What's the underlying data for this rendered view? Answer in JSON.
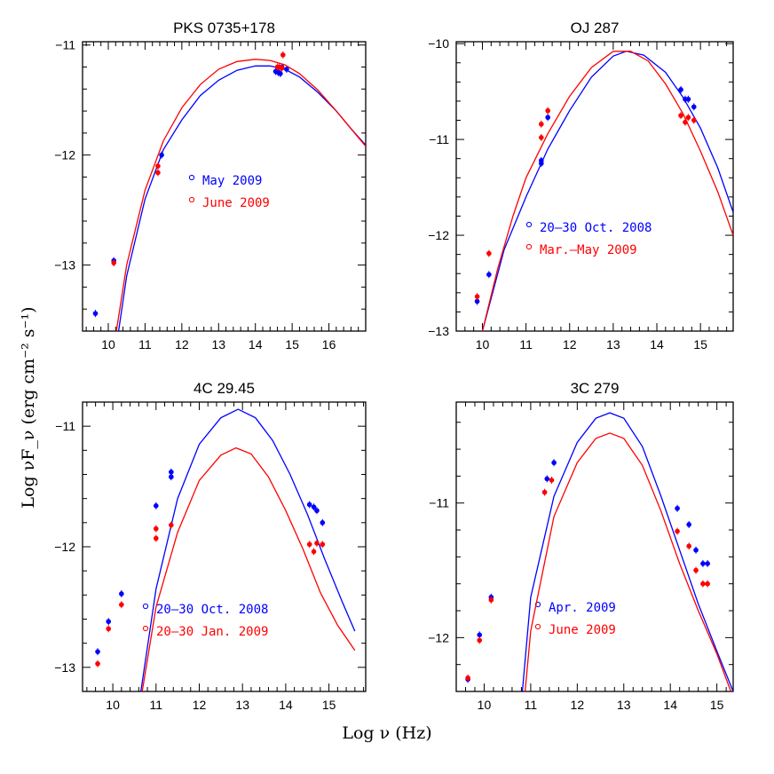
{
  "figure": {
    "ylabel": "Log νF_ν (erg cm⁻² s⁻¹)",
    "xlabel": "Log ν (Hz)"
  },
  "colors": {
    "series1": "#0000ff",
    "series2": "#ff0000",
    "axes": "#000000"
  },
  "chart_data": [
    {
      "type": "scatter",
      "title": "PKS 0735+178",
      "xlim": [
        9.3,
        17.0
      ],
      "ylim": [
        -13.6,
        -10.97
      ],
      "xticks": [
        10,
        11,
        12,
        13,
        14,
        15,
        16
      ],
      "yticks": [
        -11,
        -12,
        -13
      ],
      "legend_position": "center",
      "series": [
        {
          "name": "May 2009",
          "color": "#0000ff",
          "points": [
            [
              9.65,
              -13.44
            ],
            [
              10.15,
              -12.96
            ],
            [
              11.45,
              -12.0
            ],
            [
              14.55,
              -11.24
            ],
            [
              14.62,
              -11.25
            ],
            [
              14.68,
              -11.26
            ],
            [
              14.72,
              -11.2
            ],
            [
              14.85,
              -11.22
            ]
          ],
          "model": [
            [
              10.28,
              -13.6
            ],
            [
              10.5,
              -13.1
            ],
            [
              11.0,
              -12.4
            ],
            [
              11.5,
              -11.95
            ],
            [
              12.0,
              -11.68
            ],
            [
              12.5,
              -11.46
            ],
            [
              13.0,
              -11.32
            ],
            [
              13.5,
              -11.23
            ],
            [
              14.0,
              -11.19
            ],
            [
              14.4,
              -11.19
            ],
            [
              14.8,
              -11.22
            ],
            [
              15.2,
              -11.29
            ],
            [
              15.7,
              -11.43
            ],
            [
              16.2,
              -11.6
            ],
            [
              16.6,
              -11.76
            ],
            [
              17.0,
              -11.91
            ]
          ]
        },
        {
          "name": "June 2009",
          "color": "#ff0000",
          "points": [
            [
              10.15,
              -12.98
            ],
            [
              11.35,
              -12.1
            ],
            [
              11.35,
              -12.16
            ],
            [
              14.6,
              -11.2
            ],
            [
              14.65,
              -11.2
            ],
            [
              14.72,
              -11.21
            ],
            [
              14.75,
              -11.09
            ]
          ],
          "model": [
            [
              10.22,
              -13.6
            ],
            [
              10.5,
              -13.0
            ],
            [
              11.0,
              -12.32
            ],
            [
              11.5,
              -11.87
            ],
            [
              12.0,
              -11.57
            ],
            [
              12.5,
              -11.36
            ],
            [
              13.0,
              -11.22
            ],
            [
              13.5,
              -11.15
            ],
            [
              14.0,
              -11.13
            ],
            [
              14.4,
              -11.14
            ],
            [
              14.8,
              -11.18
            ],
            [
              15.2,
              -11.26
            ],
            [
              15.7,
              -11.41
            ],
            [
              16.2,
              -11.6
            ],
            [
              16.6,
              -11.76
            ],
            [
              17.0,
              -11.92
            ]
          ]
        }
      ]
    },
    {
      "type": "scatter",
      "title": "OJ 287",
      "xlim": [
        9.4,
        15.75
      ],
      "ylim": [
        -13.0,
        -9.98
      ],
      "xticks": [
        10,
        11,
        12,
        13,
        14,
        15
      ],
      "yticks": [
        -10,
        -11,
        -12,
        -13
      ],
      "legend_position": "bottom-right",
      "series": [
        {
          "name": "20–30 Oct. 2008",
          "color": "#0000ff",
          "points": [
            [
              9.88,
              -12.69
            ],
            [
              10.15,
              -12.41
            ],
            [
              11.35,
              -11.22
            ],
            [
              11.35,
              -11.25
            ],
            [
              11.5,
              -10.77
            ],
            [
              14.55,
              -10.48
            ],
            [
              14.65,
              -10.58
            ],
            [
              14.72,
              -10.58
            ],
            [
              14.85,
              -10.66
            ]
          ],
          "model": [
            [
              10.0,
              -13.0
            ],
            [
              10.5,
              -12.15
            ],
            [
              11.0,
              -11.6
            ],
            [
              11.5,
              -11.1
            ],
            [
              12.0,
              -10.7
            ],
            [
              12.5,
              -10.35
            ],
            [
              13.0,
              -10.13
            ],
            [
              13.3,
              -10.08
            ],
            [
              13.7,
              -10.12
            ],
            [
              14.2,
              -10.3
            ],
            [
              14.6,
              -10.56
            ],
            [
              15.0,
              -10.88
            ],
            [
              15.4,
              -11.3
            ],
            [
              15.75,
              -11.76
            ]
          ]
        },
        {
          "name": "Mar.–May 2009",
          "color": "#ff0000",
          "points": [
            [
              9.88,
              -12.64
            ],
            [
              10.15,
              -12.19
            ],
            [
              11.35,
              -10.98
            ],
            [
              11.35,
              -10.84
            ],
            [
              11.5,
              -10.7
            ],
            [
              14.55,
              -10.75
            ],
            [
              14.65,
              -10.82
            ],
            [
              14.72,
              -10.77
            ],
            [
              14.85,
              -10.8
            ]
          ],
          "model": [
            [
              10.0,
              -13.0
            ],
            [
              10.35,
              -12.35
            ],
            [
              10.7,
              -11.8
            ],
            [
              11.0,
              -11.4
            ],
            [
              11.5,
              -10.94
            ],
            [
              12.0,
              -10.55
            ],
            [
              12.5,
              -10.25
            ],
            [
              13.0,
              -10.08
            ],
            [
              13.4,
              -10.08
            ],
            [
              13.8,
              -10.18
            ],
            [
              14.2,
              -10.42
            ],
            [
              14.6,
              -10.73
            ],
            [
              15.0,
              -11.12
            ],
            [
              15.4,
              -11.55
            ],
            [
              15.75,
              -12.0
            ]
          ]
        }
      ]
    },
    {
      "type": "scatter",
      "title": "4C 29.45",
      "xlim": [
        9.3,
        15.85
      ],
      "ylim": [
        -13.2,
        -10.8
      ],
      "xticks": [
        10,
        11,
        12,
        13,
        14,
        15
      ],
      "yticks": [
        -11,
        -12,
        -13
      ],
      "legend_position": "bottom-right",
      "series": [
        {
          "name": "20–30 Oct. 2008",
          "color": "#0000ff",
          "points": [
            [
              9.65,
              -12.87
            ],
            [
              9.9,
              -12.62
            ],
            [
              10.2,
              -12.39
            ],
            [
              11.0,
              -11.66
            ],
            [
              11.35,
              -11.42
            ],
            [
              11.35,
              -11.38
            ],
            [
              14.55,
              -11.65
            ],
            [
              14.65,
              -11.67
            ],
            [
              14.72,
              -11.7
            ],
            [
              14.85,
              -11.8
            ]
          ],
          "model": [
            [
              10.65,
              -13.2
            ],
            [
              11.0,
              -12.35
            ],
            [
              11.5,
              -11.6
            ],
            [
              12.0,
              -11.15
            ],
            [
              12.5,
              -10.93
            ],
            [
              12.9,
              -10.86
            ],
            [
              13.3,
              -10.93
            ],
            [
              13.7,
              -11.12
            ],
            [
              14.1,
              -11.4
            ],
            [
              14.5,
              -11.73
            ],
            [
              14.9,
              -12.1
            ],
            [
              15.3,
              -12.45
            ],
            [
              15.6,
              -12.7
            ]
          ]
        },
        {
          "name": "20–30 Jan. 2009",
          "color": "#ff0000",
          "points": [
            [
              9.65,
              -12.97
            ],
            [
              9.9,
              -12.68
            ],
            [
              10.2,
              -12.48
            ],
            [
              11.0,
              -11.85
            ],
            [
              11.0,
              -11.93
            ],
            [
              11.35,
              -11.82
            ],
            [
              14.55,
              -11.98
            ],
            [
              14.65,
              -12.04
            ],
            [
              14.72,
              -11.97
            ],
            [
              14.85,
              -11.98
            ]
          ],
          "model": [
            [
              10.68,
              -13.2
            ],
            [
              11.0,
              -12.5
            ],
            [
              11.5,
              -11.88
            ],
            [
              12.0,
              -11.45
            ],
            [
              12.5,
              -11.24
            ],
            [
              12.85,
              -11.18
            ],
            [
              13.2,
              -11.23
            ],
            [
              13.6,
              -11.42
            ],
            [
              14.0,
              -11.7
            ],
            [
              14.4,
              -12.02
            ],
            [
              14.8,
              -12.38
            ],
            [
              15.2,
              -12.65
            ],
            [
              15.6,
              -12.86
            ]
          ]
        }
      ]
    },
    {
      "type": "scatter",
      "title": "3C 279",
      "xlim": [
        9.4,
        15.35
      ],
      "ylim": [
        -12.4,
        -10.25
      ],
      "xticks": [
        10,
        11,
        12,
        13,
        14,
        15
      ],
      "yticks": [
        -11,
        -12
      ],
      "legend_position": "bottom-right",
      "series": [
        {
          "name": "Apr. 2009",
          "color": "#0000ff",
          "points": [
            [
              9.65,
              -12.31
            ],
            [
              9.9,
              -11.98
            ],
            [
              10.15,
              -11.7
            ],
            [
              11.35,
              -10.82
            ],
            [
              11.5,
              -10.7
            ],
            [
              14.15,
              -11.04
            ],
            [
              14.4,
              -11.16
            ],
            [
              14.55,
              -11.35
            ],
            [
              14.7,
              -11.45
            ],
            [
              14.8,
              -11.45
            ]
          ],
          "model": [
            [
              10.82,
              -12.4
            ],
            [
              11.0,
              -11.7
            ],
            [
              11.5,
              -10.95
            ],
            [
              12.0,
              -10.55
            ],
            [
              12.4,
              -10.37
            ],
            [
              12.7,
              -10.33
            ],
            [
              13.0,
              -10.37
            ],
            [
              13.4,
              -10.58
            ],
            [
              13.8,
              -10.95
            ],
            [
              14.2,
              -11.35
            ],
            [
              14.6,
              -11.75
            ],
            [
              15.0,
              -12.1
            ],
            [
              15.35,
              -12.4
            ]
          ]
        },
        {
          "name": "June 2009",
          "color": "#ff0000",
          "points": [
            [
              9.65,
              -12.3
            ],
            [
              9.9,
              -12.02
            ],
            [
              10.15,
              -11.72
            ],
            [
              11.3,
              -10.92
            ],
            [
              11.45,
              -10.83
            ],
            [
              14.15,
              -11.21
            ],
            [
              14.4,
              -11.32
            ],
            [
              14.55,
              -11.5
            ],
            [
              14.7,
              -11.6
            ],
            [
              14.8,
              -11.6
            ]
          ],
          "model": [
            [
              10.88,
              -12.4
            ],
            [
              11.0,
              -11.95
            ],
            [
              11.5,
              -11.1
            ],
            [
              12.0,
              -10.7
            ],
            [
              12.4,
              -10.52
            ],
            [
              12.7,
              -10.48
            ],
            [
              13.0,
              -10.52
            ],
            [
              13.4,
              -10.72
            ],
            [
              13.8,
              -11.06
            ],
            [
              14.2,
              -11.45
            ],
            [
              14.6,
              -11.8
            ],
            [
              15.0,
              -12.12
            ],
            [
              15.3,
              -12.4
            ]
          ]
        }
      ]
    }
  ]
}
